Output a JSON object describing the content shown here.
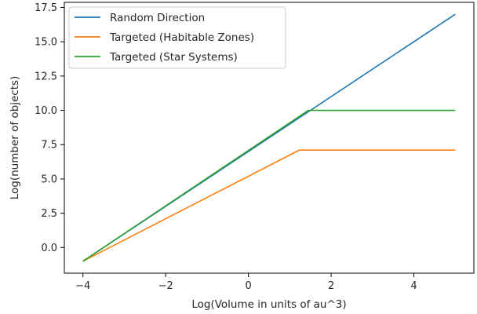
{
  "chart_data": {
    "type": "line",
    "title": "",
    "xlabel": "Log(Volume in units of au^3)",
    "ylabel": "Log(number of objects)",
    "xlim": [
      -4.45,
      5.45
    ],
    "ylim": [
      -1.87,
      17.87
    ],
    "x_ticks": [
      -4,
      -2,
      0,
      2,
      4
    ],
    "y_ticks": [
      0.0,
      2.5,
      5.0,
      7.5,
      10.0,
      12.5,
      15.0,
      17.5
    ],
    "x_tick_labels": [
      "−4",
      "−2",
      "0",
      "2",
      "4"
    ],
    "y_tick_labels": [
      "0.0",
      "2.5",
      "5.0",
      "7.5",
      "10.0",
      "12.5",
      "15.0",
      "17.5"
    ],
    "grid": false,
    "legend_position": "upper-left",
    "series": [
      {
        "name": "Random Direction",
        "color": "#1f77b4",
        "x": [
          -4.0,
          5.0
        ],
        "y": [
          -1.0,
          17.0
        ]
      },
      {
        "name": "Targeted (Habitable Zones)",
        "color": "#ff7f0e",
        "x": [
          -4.0,
          1.23,
          5.0
        ],
        "y": [
          -1.0,
          7.1,
          7.1
        ]
      },
      {
        "name": "Targeted (Star Systems)",
        "color": "#2ca02c",
        "x": [
          -4.0,
          1.45,
          5.0
        ],
        "y": [
          -1.0,
          10.0,
          10.0
        ]
      }
    ]
  }
}
